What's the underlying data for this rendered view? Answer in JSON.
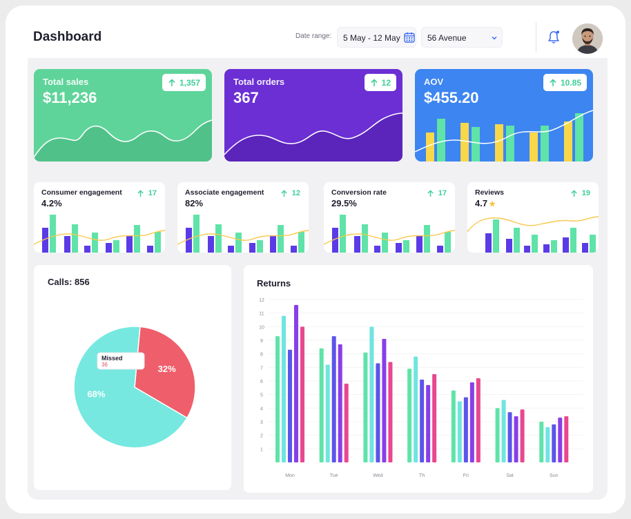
{
  "header": {
    "title": "Dashboard",
    "date_range_label": "Date range:",
    "date_range_value": "5 May - 12 May",
    "location": "56 Avenue"
  },
  "colors": {
    "green": "#5fd49a",
    "purple": "#6b2fd4",
    "blue": "#3d85f0",
    "accent_up": "#3ecf96",
    "bar_purple": "#5b3be6",
    "bar_green": "#5fe3a8",
    "bar_yellow": "#f9d74a",
    "pie_teal": "#76e8e0",
    "pie_red": "#ef5e6b"
  },
  "kpis": [
    {
      "title": "Total sales",
      "value": "$11,236",
      "badge": "1,357"
    },
    {
      "title": "Total orders",
      "value": "367",
      "badge": "12"
    },
    {
      "title": "AOV",
      "value": "$455.20",
      "badge": "10.85"
    }
  ],
  "metrics": [
    {
      "title": "Consumer engagement",
      "value": "4.2%",
      "badge": "17"
    },
    {
      "title": "Associate engagement",
      "value": "82%",
      "badge": "12"
    },
    {
      "title": "Conversion rate",
      "value": "29.5%",
      "badge": "17"
    },
    {
      "title": "Reviews",
      "value": "4.7",
      "badge": "19"
    }
  ],
  "calls": {
    "title": "Calls: 856"
  },
  "returns": {
    "title": "Returns"
  },
  "chart_data": [
    {
      "type": "pie",
      "title": "Calls: 856",
      "slices": [
        {
          "label": "Missed",
          "value": 32,
          "display": "32%",
          "count": "36"
        },
        {
          "label": "",
          "value": 68,
          "display": "68%"
        }
      ],
      "tooltip": {
        "label": "Missed",
        "value": "36"
      }
    },
    {
      "type": "bar",
      "title": "Returns",
      "categories": [
        "Mon",
        "Tue",
        "Wed",
        "Th",
        "Fri",
        "Sat",
        "Sun"
      ],
      "ylim": [
        0,
        12
      ],
      "yticks": [
        1,
        2,
        3,
        4,
        5,
        6,
        7,
        8,
        9,
        10,
        11,
        12
      ],
      "series": [
        {
          "values": [
            9.3,
            8.4,
            8.1,
            6.9,
            5.3,
            4.0,
            3.0
          ],
          "color": "#5fe3a8"
        },
        {
          "values": [
            10.8,
            7.2,
            10.0,
            7.8,
            4.5,
            4.6,
            2.6
          ],
          "color": "#6fe5e0"
        },
        {
          "values": [
            8.3,
            9.3,
            7.3,
            6.1,
            4.8,
            3.7,
            2.8
          ],
          "color": "#5b55ea"
        },
        {
          "values": [
            11.6,
            8.7,
            9.1,
            5.7,
            5.9,
            3.4,
            3.3
          ],
          "color": "#8a3ee8"
        },
        {
          "values": [
            10.0,
            5.8,
            7.4,
            6.5,
            6.2,
            3.9,
            3.4
          ],
          "color": "#e8488f"
        }
      ]
    }
  ]
}
